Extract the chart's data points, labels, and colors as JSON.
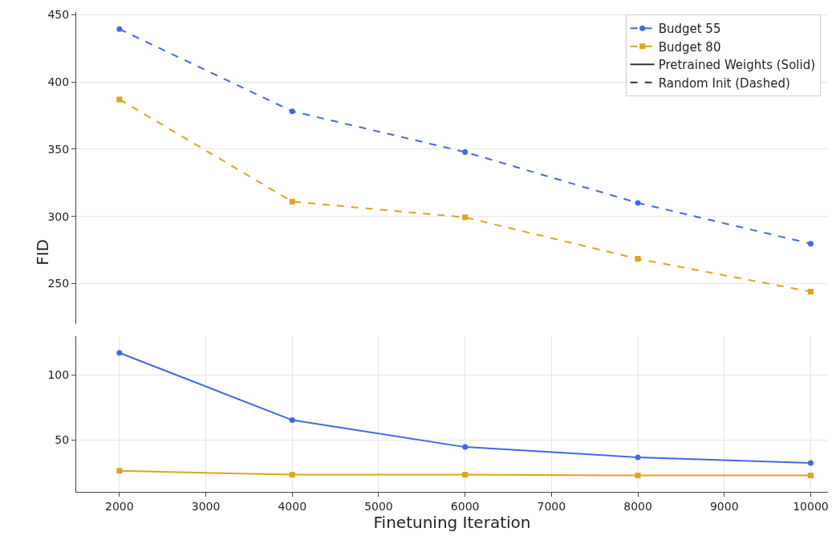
{
  "chart_data": [
    {
      "type": "line",
      "ylabel": "FID",
      "x": [
        2000,
        4000,
        6000,
        8000,
        10000
      ],
      "xlim": [
        1500,
        10200
      ],
      "ylim": [
        220,
        452
      ],
      "yticks": [
        250,
        300,
        350,
        400,
        450
      ],
      "tick_labels": "y",
      "grid": true,
      "legend": "top right",
      "series": [
        {
          "name": "Budget 55",
          "color": "#4169e1",
          "marker": "circle",
          "line_style": "dashed",
          "values": [
            439.3,
            378.2,
            347.9,
            310,
            279.7
          ]
        },
        {
          "name": "Budget 80",
          "color": "#daa520",
          "marker": "square",
          "line_style": "dashed",
          "values": [
            387,
            311,
            299.3,
            268.4,
            244
          ]
        },
        {
          "name": "Pretrained Weights (Solid)",
          "color": "#333333",
          "marker": "none",
          "line_style": "solid",
          "values": [
            null,
            null,
            null,
            null,
            null
          ]
        },
        {
          "name": "Random Init (Dashed)",
          "color": "#333333",
          "marker": "none",
          "line_style": "dashed",
          "values": [
            null,
            null,
            null,
            null,
            null
          ]
        }
      ]
    },
    {
      "type": "line",
      "xlabel": "Finetuning Iteration",
      "x": [
        2000,
        4000,
        6000,
        8000,
        10000
      ],
      "xlim": [
        1500,
        10200
      ],
      "xticks": [
        2000,
        3000,
        4000,
        5000,
        6000,
        7000,
        8000,
        9000,
        10000
      ],
      "ylim": [
        10,
        130
      ],
      "yticks": [
        50,
        100
      ],
      "grid": true,
      "series": [
        {
          "color": "#4169e1",
          "marker": "circle",
          "line_style": "solid",
          "values": [
            117,
            65.2,
            44.5,
            36.6,
            32.3
          ]
        },
        {
          "color": "#daa520",
          "marker": "square",
          "line_style": "solid",
          "values": [
            26.2,
            23.2,
            23.2,
            22.6,
            22.6
          ]
        }
      ]
    }
  ]
}
